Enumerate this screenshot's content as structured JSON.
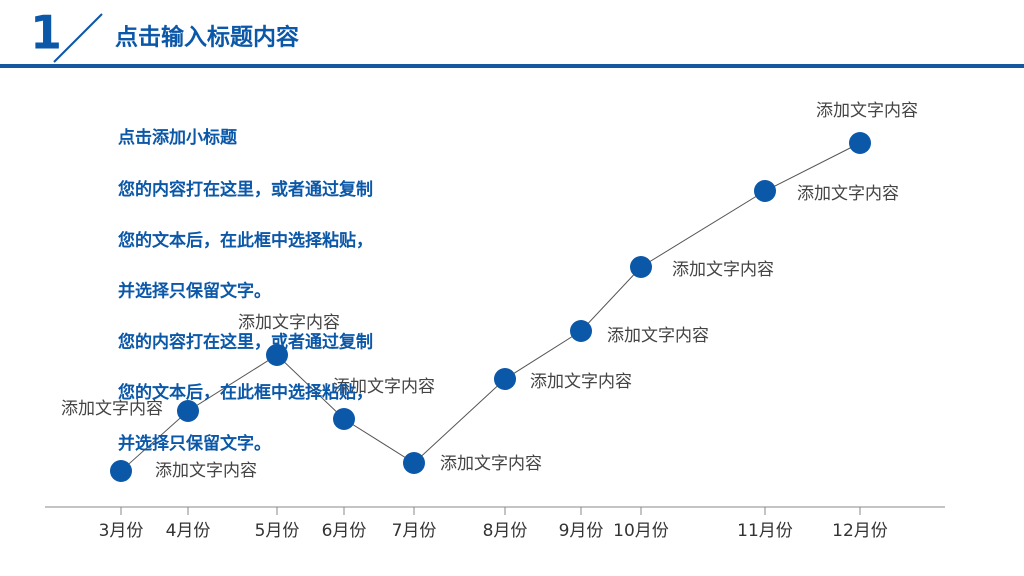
{
  "header": {
    "number": "1",
    "title": "点击输入标题内容"
  },
  "text_block": {
    "heading": "点击添加小标题",
    "lines": [
      "您的内容打在这里，或者通过复制",
      "您的文本后，在此框中选择粘贴，",
      "并选择只保留文字。",
      "您的内容打在这里，或者通过复制",
      "您的文本后，在此框中选择粘贴，",
      "并选择只保留文字。"
    ]
  },
  "chart_data": {
    "type": "line",
    "categories": [
      "3月份",
      "4月份",
      "5月份",
      "6月份",
      "7月份",
      "8月份",
      "9月份",
      "10月份",
      "11月份",
      "12月份"
    ],
    "values": [
      9,
      24,
      38,
      22,
      11,
      32,
      44,
      60,
      79,
      91
    ],
    "point_labels": [
      "添加文字内容",
      "添加文字内容",
      "添加文字内容",
      "添加文字内容",
      "添加文字内容",
      "添加文字内容",
      "添加文字内容",
      "添加文字内容",
      "添加文字内容",
      "添加文字内容"
    ],
    "ylim": [
      0,
      100
    ],
    "color": "#0b57a8",
    "line_color": "#555555"
  }
}
